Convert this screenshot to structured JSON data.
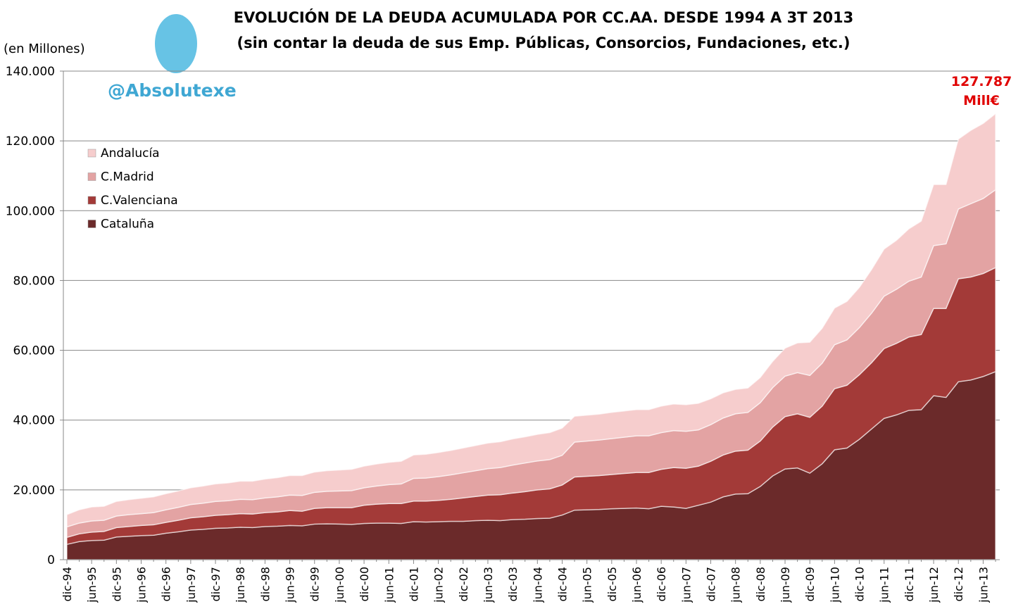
{
  "chart_data": {
    "type": "stacked_area",
    "title": "EVOLUCIÓN DE LA DEUDA ACUMULADA POR CC.AA. DESDE 1994 A 3T 2013",
    "subtitle": "(sin contar la deuda de sus Emp. Públicas, Consorcios, Fundaciones, etc.)",
    "y_label": "(en Millones)",
    "watermark": "@Absolutexe",
    "annotation": [
      "127.787",
      "Mill€"
    ],
    "categories": [
      "dic-94",
      null,
      "jun-95",
      null,
      "dic-95",
      null,
      "jun-96",
      null,
      "dic-96",
      null,
      "jun-97",
      null,
      "dic-97",
      null,
      "jun-98",
      null,
      "dic-98",
      null,
      "jun-99",
      null,
      "dic-99",
      null,
      "jun-00",
      null,
      "dic-00",
      null,
      "jun-01",
      null,
      "dic-01",
      null,
      "jun-02",
      null,
      "dic-02",
      null,
      "jun-03",
      null,
      "dic-03",
      null,
      "jun-04",
      null,
      "dic-04",
      null,
      "jun-05",
      null,
      "dic-05",
      null,
      "jun-06",
      null,
      "dic-06",
      null,
      "jun-07",
      null,
      "dic-07",
      null,
      "jun-08",
      null,
      "dic-08",
      null,
      "jun-09",
      null,
      "dic-09",
      null,
      "jun-10",
      null,
      "dic-10",
      null,
      "jun-11",
      null,
      "dic-11",
      null,
      "jun-12",
      null,
      "dic-12",
      null,
      "jun-13",
      null
    ],
    "series": [
      {
        "name": "Cataluña",
        "color": "#6b2a2a",
        "values": [
          4400,
          5200,
          5500,
          5600,
          6500,
          6700,
          6900,
          7000,
          7600,
          8000,
          8500,
          8700,
          9000,
          9100,
          9300,
          9200,
          9500,
          9600,
          9800,
          9700,
          10200,
          10300,
          10200,
          10100,
          10400,
          10500,
          10500,
          10400,
          10900,
          10800,
          10900,
          11000,
          11000,
          11200,
          11300,
          11200,
          11500,
          11600,
          11800,
          11900,
          12800,
          14200,
          14300,
          14400,
          14600,
          14700,
          14800,
          14600,
          15300,
          15100,
          14700,
          15600,
          16500,
          18000,
          18800,
          18900,
          21000,
          24000,
          26000,
          26300,
          24800,
          27500,
          31500,
          32000,
          34500,
          37500,
          40500,
          41500,
          42800,
          43000,
          47000,
          46500,
          51000,
          51500,
          52500,
          53900
        ]
      },
      {
        "name": "C.Valenciana",
        "color": "#a33a38",
        "values": [
          2000,
          2200,
          2400,
          2500,
          2700,
          2800,
          2900,
          3000,
          3100,
          3300,
          3500,
          3600,
          3700,
          3800,
          3900,
          3900,
          4000,
          4100,
          4300,
          4200,
          4500,
          4600,
          4700,
          4800,
          5200,
          5400,
          5600,
          5700,
          5900,
          6000,
          6100,
          6300,
          6700,
          6900,
          7200,
          7400,
          7600,
          7900,
          8200,
          8400,
          8600,
          9500,
          9600,
          9700,
          9800,
          10000,
          10200,
          10400,
          10600,
          11300,
          11500,
          11200,
          11700,
          12000,
          12300,
          12500,
          13000,
          14000,
          15000,
          15500,
          16000,
          16500,
          17500,
          18000,
          18500,
          19000,
          20000,
          20500,
          21000,
          21500,
          25000,
          25500,
          29500,
          29500,
          29500,
          29800
        ]
      },
      {
        "name": "C.Madrid",
        "color": "#e3a3a3",
        "values": [
          3000,
          3100,
          3200,
          3200,
          3300,
          3400,
          3400,
          3500,
          3600,
          3700,
          3800,
          3900,
          4000,
          4000,
          4100,
          4100,
          4200,
          4300,
          4400,
          4500,
          4600,
          4700,
          4800,
          4900,
          5000,
          5200,
          5400,
          5600,
          6500,
          6600,
          6800,
          7000,
          7200,
          7400,
          7600,
          7800,
          8000,
          8200,
          8300,
          8400,
          8500,
          10000,
          10100,
          10200,
          10300,
          10400,
          10500,
          10500,
          10500,
          10600,
          10600,
          10400,
          10500,
          10600,
          10700,
          10800,
          11000,
          11300,
          11600,
          11800,
          12000,
          12300,
          12600,
          13000,
          13500,
          14200,
          15000,
          15500,
          16000,
          16500,
          18000,
          18500,
          20000,
          21000,
          21500,
          22300
        ]
      },
      {
        "name": "Andalucía",
        "color": "#f6cdcd",
        "values": [
          3500,
          3800,
          4000,
          4000,
          4200,
          4300,
          4400,
          4500,
          4600,
          4700,
          4800,
          4900,
          5000,
          5100,
          5200,
          5300,
          5400,
          5500,
          5600,
          5700,
          5800,
          5900,
          6000,
          6100,
          6200,
          6300,
          6400,
          6500,
          6700,
          6800,
          6900,
          7000,
          7100,
          7200,
          7300,
          7400,
          7500,
          7500,
          7600,
          7700,
          7800,
          7400,
          7400,
          7400,
          7500,
          7500,
          7500,
          7500,
          7600,
          7600,
          7600,
          7600,
          7400,
          7200,
          7000,
          7000,
          7200,
          7500,
          8000,
          8500,
          9500,
          10000,
          10500,
          11000,
          11500,
          12500,
          13500,
          14000,
          15000,
          16000,
          17500,
          17000,
          20000,
          21000,
          21500,
          21787
        ]
      }
    ],
    "ylim": [
      0,
      140000
    ],
    "yticks": [
      0,
      {
        "value": 20000,
        "label": "20.000"
      },
      {
        "value": 40000,
        "label": "40.000"
      },
      {
        "value": 60000,
        "label": "60.000"
      },
      {
        "value": 80000,
        "label": "80.000"
      },
      {
        "value": 100000,
        "label": "100.000"
      },
      {
        "value": 120000,
        "label": "120.000"
      },
      {
        "value": 140000,
        "label": "140.000"
      }
    ],
    "grid": true,
    "legend_position": "upper-left"
  }
}
